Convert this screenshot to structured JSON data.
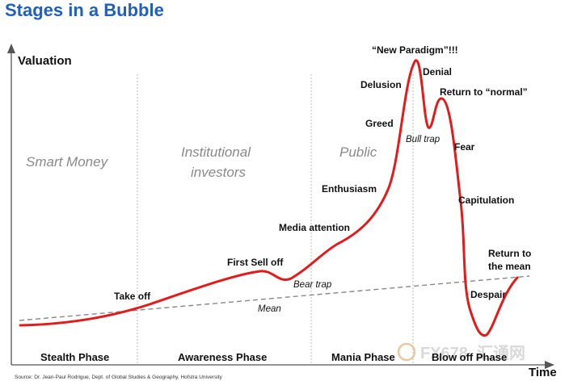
{
  "title": "Stages in a Bubble",
  "axes": {
    "y_label": "Valuation",
    "x_label": "Time"
  },
  "groups": {
    "smart_money": "Smart Money",
    "institutional_1": "Institutional",
    "institutional_2": "investors",
    "public": "Public"
  },
  "phases": {
    "stealth": "Stealth Phase",
    "awareness": "Awareness Phase",
    "mania": "Mania Phase",
    "blowoff": "Blow off Phase"
  },
  "stages": {
    "take_off": "Take off",
    "first_sell_off": "First Sell off",
    "bear_trap": "Bear trap",
    "mean": "Mean",
    "media_attention": "Media attention",
    "enthusiasm": "Enthusiasm",
    "greed": "Greed",
    "delusion": "Delusion",
    "new_paradigm": "“New Paradigm”!!!",
    "denial": "Denial",
    "bull_trap": "Bull trap",
    "return_normal": "Return to “normal”",
    "fear": "Fear",
    "capitulation": "Capitulation",
    "despair": "Despair",
    "return_mean_1": "Return to",
    "return_mean_2": "the mean"
  },
  "source": "Source: Dr. Jean-Paul Rodrigue, Dept. of Global Studies & Geography, Hofstra University",
  "watermark": {
    "text1": "FX678",
    "text2": "汇通网"
  },
  "colors": {
    "title": "#1f5fbf",
    "curve": "#e31b1b",
    "mean_line": "#888888",
    "divider": "#bbbbbb"
  }
}
